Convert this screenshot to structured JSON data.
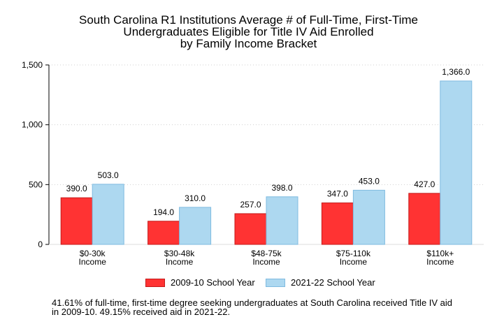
{
  "chart_data": {
    "type": "bar",
    "title_lines": [
      "South Carolina R1 Institutions Average # of Full-Time, First-Time",
      "Undergraduates Eligible for Title IV Aid Enrolled",
      "by Family Income Bracket"
    ],
    "categories": [
      [
        "$0-30k",
        "Income"
      ],
      [
        "$30-48k",
        "Income"
      ],
      [
        "$48-75k",
        "Income"
      ],
      [
        "$75-110k",
        "Income"
      ],
      [
        "$110k+",
        "Income"
      ]
    ],
    "series": [
      {
        "name": "2009-10 School Year",
        "values": [
          390.0,
          194.0,
          257.0,
          347.0,
          427.0
        ],
        "labels": [
          "390.0",
          "194.0",
          "257.0",
          "347.0",
          "427.0"
        ],
        "color": "#ff3333",
        "stroke": "#c41a1a"
      },
      {
        "name": "2021-22 School Year",
        "values": [
          503.0,
          310.0,
          398.0,
          453.0,
          1366.0
        ],
        "labels": [
          "503.0",
          "310.0",
          "398.0",
          "453.0",
          "1,366.0"
        ],
        "color": "#add8f0",
        "stroke": "#7fbbe0"
      }
    ],
    "yticks": [
      0,
      500,
      1000,
      1500
    ],
    "ytick_labels": [
      "0",
      "500",
      "1,000",
      "1,500"
    ],
    "ylim": [
      0,
      1500
    ],
    "grid": true,
    "legend_position": "bottom"
  },
  "footnote_lines": [
    "41.61% of full-time, first-time degree seeking undergraduates at South Carolina received Title IV aid",
    "in 2009-10. 49.15% received aid in 2021-22."
  ]
}
